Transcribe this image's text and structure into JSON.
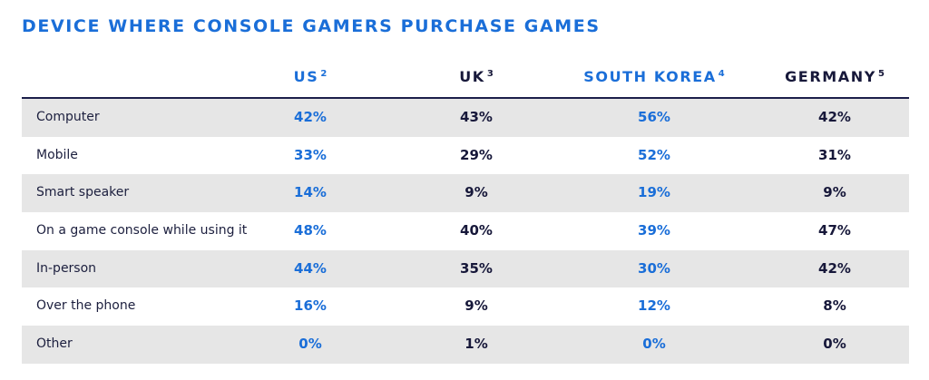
{
  "title": "DEVICE WHERE CONSOLE GAMERS PURCHASE GAMES",
  "columns": [
    {
      "label": "US",
      "footnote": "2",
      "color": "#1a6ed8"
    },
    {
      "label": "UK",
      "footnote": "3",
      "color": "#17183a"
    },
    {
      "label": "SOUTH KOREA",
      "footnote": "4",
      "color": "#1a6ed8"
    },
    {
      "label": "GERMANY",
      "footnote": "5",
      "color": "#17183a"
    }
  ],
  "chart_data": {
    "type": "table",
    "title": "DEVICE WHERE CONSOLE GAMERS PURCHASE GAMES",
    "columns": [
      "US²",
      "UK³",
      "SOUTH KOREA⁴",
      "GERMANY⁵"
    ],
    "rows": [
      {
        "label": "Computer",
        "values": [
          "42%",
          "43%",
          "56%",
          "42%"
        ]
      },
      {
        "label": "Mobile",
        "values": [
          "33%",
          "29%",
          "52%",
          "31%"
        ]
      },
      {
        "label": "Smart speaker",
        "values": [
          "14%",
          "9%",
          "19%",
          "9%"
        ]
      },
      {
        "label": "On a game console while using it",
        "values": [
          "48%",
          "40%",
          "39%",
          "47%"
        ]
      },
      {
        "label": "In-person",
        "values": [
          "44%",
          "35%",
          "30%",
          "42%"
        ]
      },
      {
        "label": "Over the phone",
        "values": [
          "16%",
          "9%",
          "12%",
          "8%"
        ]
      },
      {
        "label": "Other",
        "values": [
          "0%",
          "1%",
          "0%",
          "0%"
        ]
      }
    ]
  },
  "colors": {
    "accent_blue": "#1a6ed8",
    "dark_navy": "#17183a",
    "row_shade": "#e6e6e6",
    "rule": "#1c1f4a"
  }
}
